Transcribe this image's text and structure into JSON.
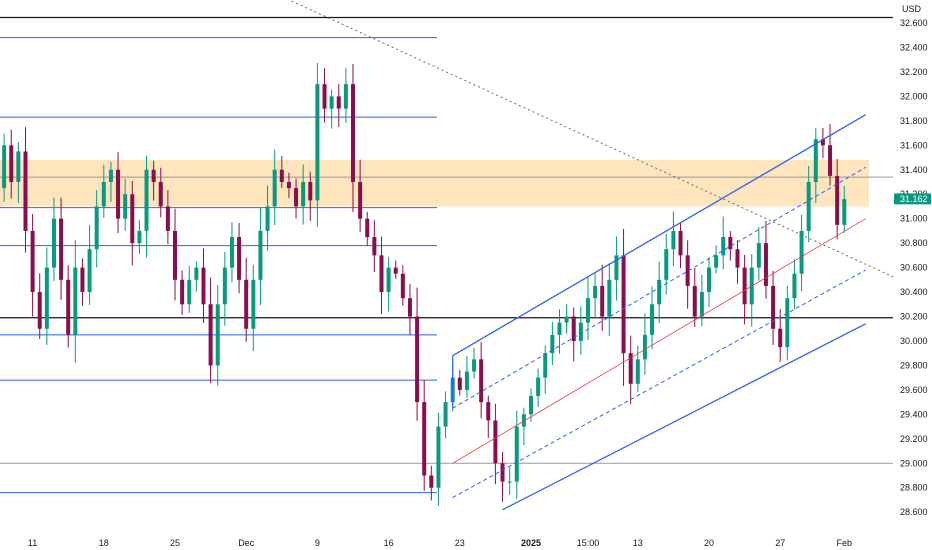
{
  "chart_data": {
    "type": "candlestick",
    "currency": "USD",
    "price_axis": {
      "ylim": [
        28.6,
        32.7
      ],
      "ticks": [
        28.6,
        28.8,
        29.0,
        29.2,
        29.4,
        29.6,
        29.8,
        30.0,
        30.2,
        30.4,
        30.6,
        30.8,
        31.0,
        31.2,
        31.4,
        31.6,
        31.8,
        32.0,
        32.2,
        32.4,
        32.6
      ],
      "tick_labels": [
        "28.600",
        "28.800",
        "29.000",
        "29.200",
        "29.400",
        "29.600",
        "29.800",
        "30.000",
        "30.200",
        "30.400",
        "30.600",
        "30.800",
        "31.000",
        "31.200",
        "31.400",
        "31.600",
        "31.800",
        "32.000",
        "32.200",
        "32.400",
        "32.600"
      ]
    },
    "time_axis": {
      "labels": [
        {
          "text": "11",
          "bar": 5,
          "bold": false
        },
        {
          "text": "18",
          "bar": 15,
          "bold": false
        },
        {
          "text": "25",
          "bar": 25,
          "bold": false
        },
        {
          "text": "Dec",
          "bar": 35,
          "bold": false
        },
        {
          "text": "9",
          "bar": 45,
          "bold": false
        },
        {
          "text": "16",
          "bar": 55,
          "bold": false
        },
        {
          "text": "23",
          "bar": 65,
          "bold": false
        },
        {
          "text": "2025",
          "bar": 75,
          "bold": true
        },
        {
          "text": "15:00",
          "bar": 83,
          "bold": false
        },
        {
          "text": "13",
          "bar": 90,
          "bold": false
        },
        {
          "text": "20",
          "bar": 100,
          "bold": false
        },
        {
          "text": "27",
          "bar": 110,
          "bold": false
        },
        {
          "text": "Feb",
          "bar": 119,
          "bold": false
        }
      ]
    },
    "last_price": {
      "value": 31.162,
      "label": "31.162"
    },
    "close_series": [
      31.25,
      31.6,
      31.3,
      31.55,
      30.9,
      30.4,
      30.1,
      30.6,
      31.0,
      30.5,
      30.05,
      30.6,
      30.4,
      30.75,
      31.1,
      31.3,
      31.4,
      31.0,
      31.2,
      30.8,
      30.9,
      31.4,
      31.3,
      31.1,
      30.9,
      30.5,
      30.3,
      30.5,
      30.6,
      30.3,
      29.8,
      30.3,
      30.6,
      30.85,
      30.5,
      30.1,
      30.5,
      30.9,
      31.1,
      31.4,
      31.3,
      31.25,
      31.1,
      31.3,
      31.15,
      32.1,
      31.9,
      32.0,
      31.9,
      32.1,
      31.3,
      31.0,
      30.85,
      30.7,
      30.4,
      30.6,
      30.55,
      30.35,
      30.2,
      29.5,
      28.9,
      28.8,
      29.3,
      29.5,
      29.7,
      29.6,
      29.75,
      29.85,
      29.5,
      29.35,
      29.0,
      28.85,
      28.85,
      29.3,
      29.4,
      29.55,
      29.7,
      29.9,
      30.05,
      30.15,
      30.2,
      30.0,
      30.15,
      30.35,
      30.45,
      30.2,
      30.5,
      30.7,
      29.9,
      29.65,
      29.85,
      30.05,
      30.3,
      30.5,
      30.75,
      30.9,
      30.7,
      30.45,
      30.2,
      30.4,
      30.6,
      30.7,
      30.85,
      30.75,
      30.6,
      30.3,
      30.6,
      30.8,
      30.45,
      30.1,
      29.95,
      30.35,
      30.55,
      30.9,
      31.3,
      31.65,
      31.6,
      31.35,
      30.95,
      31.16
    ],
    "drawings": [
      {
        "kind": "horizontal-line",
        "price": 32.645,
        "color": "#131722"
      },
      {
        "kind": "horizontal-line",
        "price": 32.48,
        "color": "#2962ff"
      },
      {
        "kind": "horizontal-line",
        "price": 31.83,
        "color": "#2962ff"
      },
      {
        "kind": "horizontal-line",
        "price": 31.09,
        "color": "#2962ff"
      },
      {
        "kind": "horizontal-line",
        "price": 30.78,
        "color": "#2962ff"
      },
      {
        "kind": "horizontal-line",
        "price": 30.19,
        "color": "#131722"
      },
      {
        "kind": "horizontal-line",
        "price": 30.05,
        "color": "#2962ff"
      },
      {
        "kind": "horizontal-line",
        "price": 29.68,
        "color": "#2962ff"
      },
      {
        "kind": "horizontal-line",
        "price": 29.0,
        "color": "#9598a1"
      },
      {
        "kind": "horizontal-line",
        "price": 28.76,
        "color": "#2962ff"
      },
      {
        "kind": "horizontal-line",
        "price": 31.34,
        "color": "#9598a1"
      },
      {
        "kind": "zone",
        "price_top": 31.48,
        "price_bottom": 31.1,
        "color": "#ffe0b2"
      },
      {
        "kind": "trend-line",
        "style": "dotted",
        "color": "#6a6a6a",
        "p1": {
          "bar": 35,
          "price": 32.95
        },
        "p2": {
          "bar": 150,
          "price": 29.88
        }
      },
      {
        "kind": "channel-upper",
        "color": "#2962ff",
        "p1": {
          "bar": 64,
          "price": 29.88
        },
        "p2": {
          "bar": 122,
          "price": 31.85
        }
      },
      {
        "kind": "channel-lower",
        "color": "#2962ff",
        "p1": {
          "bar": 71,
          "price": 28.62
        },
        "p2": {
          "bar": 122,
          "price": 30.14
        }
      },
      {
        "kind": "channel-mid",
        "color": "#f23645",
        "p1": {
          "bar": 64,
          "price": 29.0
        },
        "p2": {
          "bar": 122,
          "price": 31.0
        }
      },
      {
        "kind": "channel-inner-upper",
        "style": "dashed",
        "color": "#2962ff",
        "p1": {
          "bar": 64,
          "price": 29.45
        },
        "p2": {
          "bar": 122,
          "price": 31.42
        }
      },
      {
        "kind": "channel-inner-lower",
        "style": "dashed",
        "color": "#2962ff",
        "p1": {
          "bar": 64,
          "price": 28.72
        },
        "p2": {
          "bar": 122,
          "price": 30.58
        }
      }
    ],
    "colors": {
      "up": "#089981",
      "down": "#880e4f",
      "wick": "#131722",
      "last_price": "#089981"
    }
  }
}
